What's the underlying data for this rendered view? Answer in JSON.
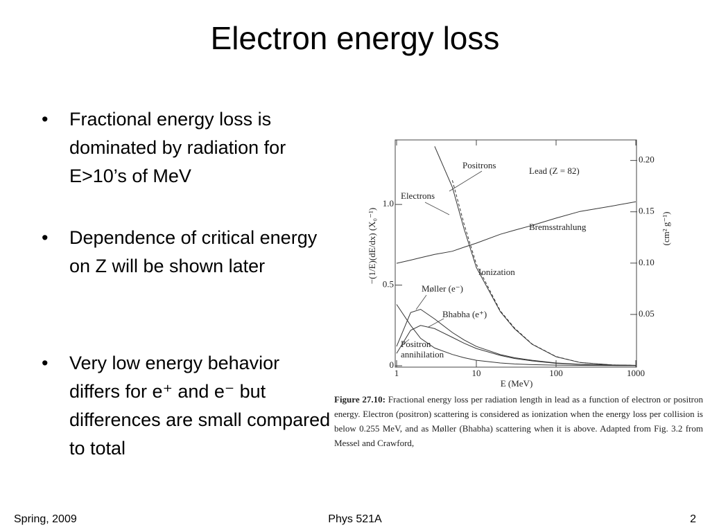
{
  "slide": {
    "title": "Electron energy loss",
    "bullets": [
      "Fractional energy loss is dominated by radiation for E>10’s of MeV",
      "Dependence of critical energy on Z will be shown later",
      "Very low energy behavior differs for e⁺ and e⁻ but differences are small compared to total"
    ],
    "footer": {
      "left": "Spring, 2009",
      "center": "Phys 521A",
      "right": "2"
    }
  },
  "chart_data": {
    "type": "line",
    "xlabel": "E (MeV)",
    "ylabel": "−(1/E)(dE/dx) (X₀⁻¹)",
    "y2label": "(cm² g⁻¹)",
    "annotations": [
      "Lead (Z = 82)",
      "Ionization"
    ],
    "xscale": "log",
    "xlim": [
      1,
      1000
    ],
    "xticks": [
      1,
      10,
      100,
      1000
    ],
    "ylim": [
      0,
      1.4
    ],
    "yticks": [
      0,
      0.5,
      {
        "value": 1,
        "label": "1.0"
      }
    ],
    "y2lim": [
      0,
      0.22
    ],
    "y2ticks": [
      0.05,
      {
        "value": 0.1,
        "label": "0.10"
      },
      0.15,
      {
        "value": 0.2,
        "label": "0.20"
      }
    ],
    "x": [
      1,
      1.5,
      2,
      3,
      5,
      7,
      10,
      20,
      30,
      50,
      100,
      200,
      500,
      1000
    ],
    "series": [
      {
        "name": "Electrons",
        "color": "#333333",
        "style": "solid",
        "values": [
          null,
          null,
          null,
          1.36,
          1.107,
          0.85,
          0.61,
          0.335,
          0.23,
          0.133,
          0.056,
          0.02,
          0.005,
          0.002
        ]
      },
      {
        "name": "Positrons",
        "color": "#333333",
        "style": "dashed",
        "values": [
          null,
          null,
          null,
          null,
          1.15,
          0.88,
          0.63,
          0.34,
          0.235,
          0.135,
          0.057,
          0.02,
          0.005,
          0.002
        ]
      },
      {
        "name": "Bremsstrahlung",
        "color": "#333333",
        "style": "solid",
        "values": [
          0.635,
          0.655,
          0.67,
          0.69,
          0.71,
          0.735,
          0.76,
          0.815,
          0.84,
          0.87,
          0.915,
          0.957,
          0.99,
          1.017
        ]
      },
      {
        "name": "Møller (e⁻)",
        "color": "#333333",
        "style": "solid",
        "values": [
          0.12,
          0.33,
          0.35,
          0.29,
          0.206,
          0.16,
          0.12,
          0.069,
          0.05,
          0.034,
          0.017,
          0.009,
          0.004,
          0.002
        ]
      },
      {
        "name": "Bhabha (e⁺)",
        "color": "#333333",
        "style": "solid",
        "values": [
          0.077,
          0.22,
          0.25,
          0.23,
          0.176,
          0.14,
          0.107,
          0.064,
          0.045,
          0.03,
          0.015,
          0.008,
          0.004,
          0.002
        ]
      },
      {
        "name": "Positron annihilation",
        "color": "#333333",
        "style": "solid",
        "values": [
          0.38,
          0.25,
          0.17,
          0.11,
          0.07,
          0.05,
          0.034,
          0.017,
          0.011,
          0.007,
          0.004,
          0.002,
          0.001,
          0.0005
        ]
      }
    ]
  },
  "caption": {
    "label": "Figure 27.10:",
    "text": "Fractional energy loss per radiation length in lead as a function of electron or positron energy. Electron (positron) scattering is considered as ionization when the energy loss per collision is below 0.255 MeV, and as Møller (Bhabha) scattering when it is above. Adapted from Fig. 3.2 from Messel and Crawford,"
  }
}
